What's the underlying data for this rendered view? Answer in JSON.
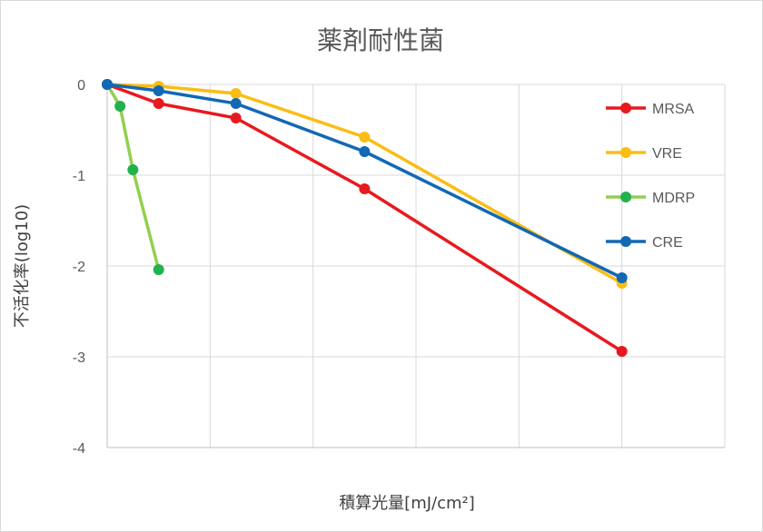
{
  "chart_data": {
    "type": "line",
    "title": "薬剤耐性菌",
    "xlabel": "積算光量[mJ/cm²]",
    "ylabel": "不活化率(log10)",
    "ylim": [
      -4,
      0
    ],
    "xlim": [
      0,
      6
    ],
    "yticks": [
      0,
      -1,
      -2,
      -3,
      -4
    ],
    "ytick_labels": [
      "0",
      "-1",
      "-2",
      "-3",
      "-4"
    ],
    "grid": true,
    "legend_position": "right",
    "series": [
      {
        "name": "MRSA",
        "color": "#e8191e",
        "points": [
          [
            0,
            0
          ],
          [
            0.5,
            -0.21
          ],
          [
            1.25,
            -0.37
          ],
          [
            2.5,
            -1.15
          ],
          [
            5.0,
            -2.94
          ]
        ]
      },
      {
        "name": "VRE",
        "color": "#fbbd14",
        "points": [
          [
            0,
            0
          ],
          [
            0.5,
            -0.02
          ],
          [
            1.25,
            -0.1
          ],
          [
            2.5,
            -0.58
          ],
          [
            5.0,
            -2.19
          ]
        ]
      },
      {
        "name": "MDRP",
        "color": "#23b14d",
        "line_color": "#92d050",
        "points": [
          [
            0,
            0
          ],
          [
            0.125,
            -0.24
          ],
          [
            0.25,
            -0.94
          ],
          [
            0.5,
            -2.04
          ]
        ]
      },
      {
        "name": "CRE",
        "color": "#1268b4",
        "points": [
          [
            0,
            0
          ],
          [
            0.5,
            -0.07
          ],
          [
            1.25,
            -0.21
          ],
          [
            2.5,
            -0.74
          ],
          [
            5.0,
            -2.13
          ]
        ]
      }
    ]
  }
}
